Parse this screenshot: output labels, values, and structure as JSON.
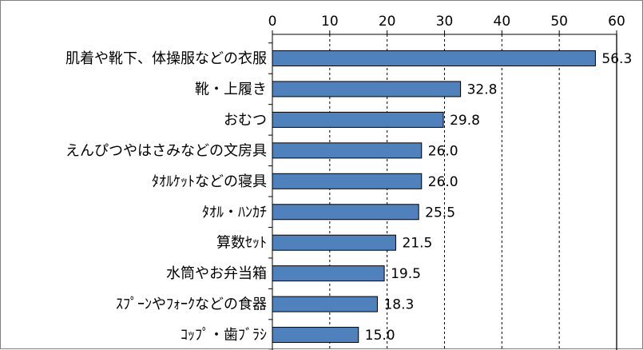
{
  "chart_data": {
    "type": "bar",
    "orientation": "horizontal",
    "categories": [
      "肌着や靴下、体操服などの衣服",
      "靴・上履き",
      "おむつ",
      "えんぴつやはさみなどの文房具",
      "ﾀｵﾙｹｯﾄなどの寝具",
      "ﾀｵﾙ・ﾊﾝｶﾁ",
      "算数ｾｯﾄ",
      "水筒やお弁当箱",
      "ｽﾌﾟｰﾝやﾌｫｰｸなどの食器",
      "ｺｯﾌﾟ・歯ﾌﾞﾗｼ"
    ],
    "values": [
      56.3,
      32.8,
      29.8,
      26.0,
      26.0,
      25.5,
      21.5,
      19.5,
      18.3,
      15.0
    ],
    "value_labels": [
      "56.3",
      "32.8",
      "29.8",
      "26.0",
      "26.0",
      "25.5",
      "21.5",
      "19.5",
      "18.3",
      "15.0"
    ],
    "xlim": [
      0,
      60
    ],
    "ticks": [
      0,
      10,
      20,
      30,
      40,
      50,
      60
    ],
    "tick_labels": [
      "0",
      "10",
      "20",
      "30",
      "40",
      "50",
      "60"
    ],
    "axis_position": "top",
    "grid": "vertical dashed",
    "bar_color": "#4f81bd",
    "bar_edge_color": "#000000",
    "title": "",
    "xlabel": "",
    "ylabel": ""
  }
}
